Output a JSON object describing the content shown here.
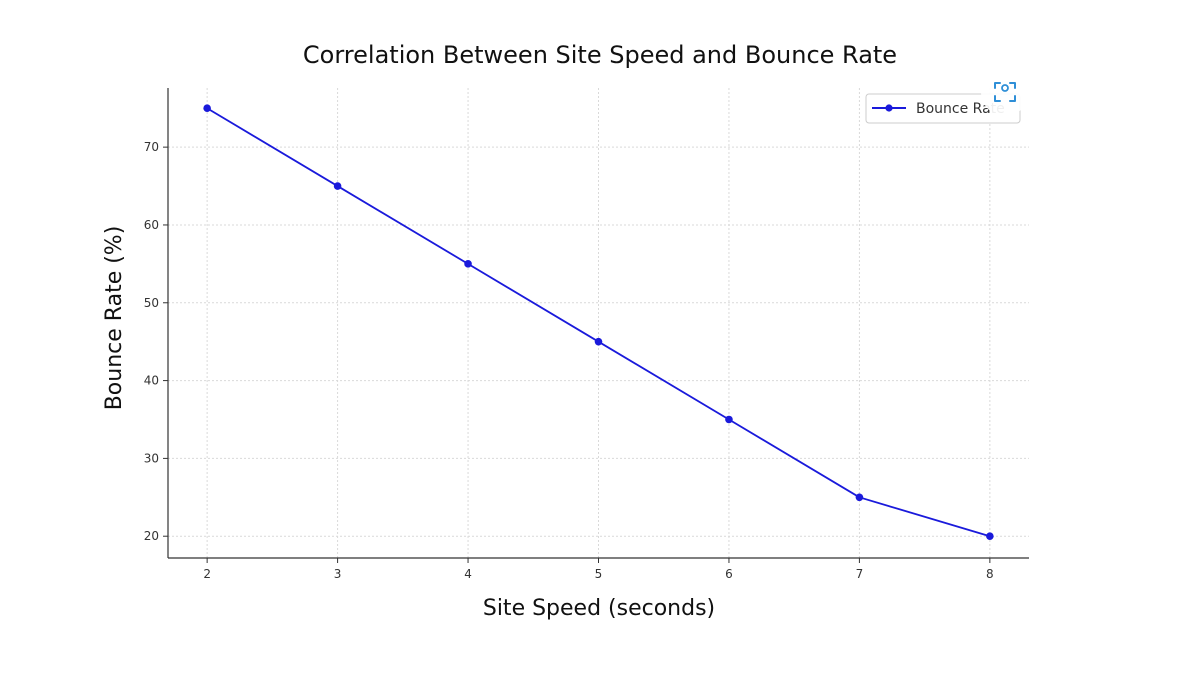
{
  "chart_data": {
    "type": "line",
    "title": "Correlation Between Site Speed and Bounce Rate",
    "xlabel": "Site Speed (seconds)",
    "ylabel": "Bounce Rate (%)",
    "xlim": [
      1.7,
      8.3
    ],
    "ylim": [
      17.2,
      77.6
    ],
    "xticks": [
      2,
      3,
      4,
      5,
      6,
      7,
      8
    ],
    "yticks": [
      20,
      30,
      40,
      50,
      60,
      70
    ],
    "grid": true,
    "legend_position": "top-right",
    "series": [
      {
        "name": "Bounce Rate",
        "color": "#1a1adb",
        "marker": "circle",
        "x": [
          2,
          3,
          4,
          5,
          6,
          7,
          8
        ],
        "y": [
          75,
          65,
          55,
          45,
          35,
          25,
          20
        ]
      }
    ]
  },
  "colors": {
    "series": "#1a1adb",
    "grid": "#d9d9d9",
    "axis": "#333333",
    "legend_border": "#cccccc"
  }
}
